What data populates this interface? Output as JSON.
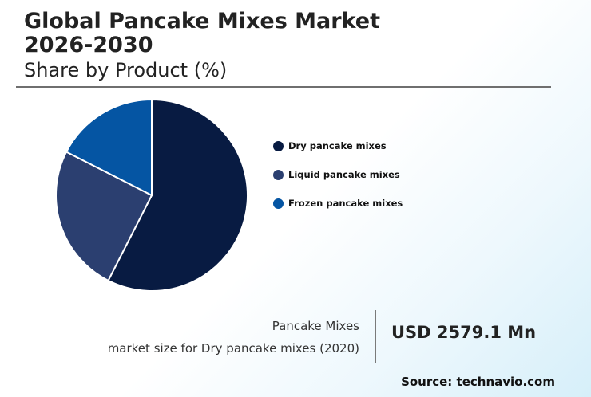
{
  "header": {
    "title_line1": "Global Pancake Mixes Market",
    "title_line2": "2026-2030",
    "subtitle": "Share by Product (%)"
  },
  "chart_data": {
    "type": "pie",
    "title": "Share by Product (%)",
    "categories": [
      "Dry pancake mixes",
      "Liquid pancake mixes",
      "Frozen pancake mixes"
    ],
    "values": [
      57.5,
      25,
      17.5
    ],
    "colors": [
      "#081b42",
      "#2b3f70",
      "#0555a3"
    ],
    "legend_position": "right"
  },
  "legend": {
    "items": [
      {
        "label": "Dry pancake mixes",
        "color": "#081b42"
      },
      {
        "label": "Liquid pancake mixes",
        "color": "#2b3f70"
      },
      {
        "label": "Frozen pancake mixes",
        "color": "#0555a3"
      }
    ]
  },
  "market_size": {
    "label_line1": "Pancake Mixes",
    "label_line2": "market size for Dry pancake mixes (2020)",
    "value": "USD 2579.1 Mn"
  },
  "footer": {
    "source": "Source: technavio.com"
  }
}
